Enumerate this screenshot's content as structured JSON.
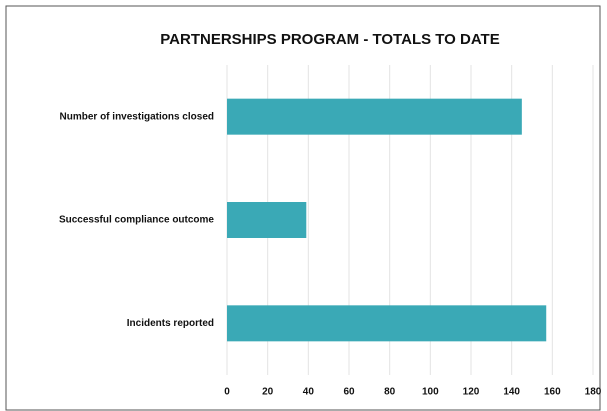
{
  "chart_data": {
    "type": "hbar",
    "title": "PARTNERSHIPS PROGRAM - TOTALS TO DATE",
    "categories": [
      "Number of investigations closed",
      "Successful compliance outcome",
      "Incidents reported"
    ],
    "values": [
      145,
      39,
      157
    ],
    "color": "#3aa9b6",
    "xlim": [
      0,
      180
    ],
    "xticks": [
      0,
      20,
      40,
      60,
      80,
      100,
      120,
      140,
      160,
      180
    ],
    "grid": true
  }
}
